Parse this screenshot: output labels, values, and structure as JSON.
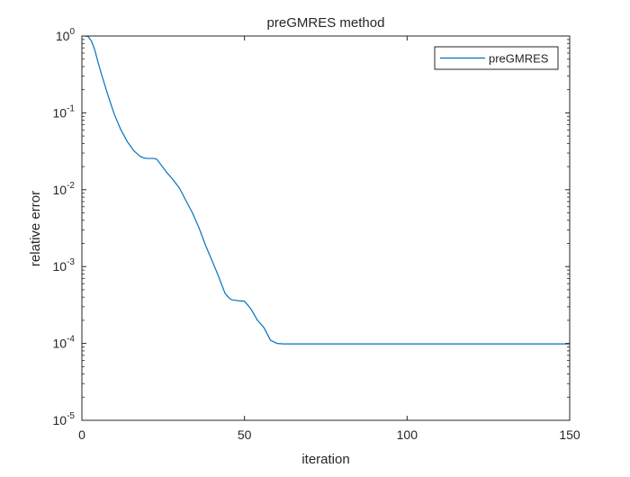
{
  "chart_data": {
    "type": "line",
    "title": "preGMRES method",
    "xlabel": "iteration",
    "ylabel": "relative error",
    "xlim": [
      0,
      150
    ],
    "ylim": [
      1e-05,
      1
    ],
    "yscale": "log",
    "x_ticks": [
      0,
      50,
      100,
      150
    ],
    "x_tick_labels": [
      "0",
      "50",
      "100",
      "150"
    ],
    "y_ticks": [
      {
        "value": 1,
        "base": "10",
        "exp": "0"
      },
      {
        "value": 0.1,
        "base": "10",
        "exp": "-1"
      },
      {
        "value": 0.01,
        "base": "10",
        "exp": "-2"
      },
      {
        "value": 0.001,
        "base": "10",
        "exp": "-3"
      },
      {
        "value": 0.0001,
        "base": "10",
        "exp": "-4"
      },
      {
        "value": 1e-05,
        "base": "10",
        "exp": "-5"
      }
    ],
    "grid": false,
    "legend": {
      "position": "top-right",
      "entries": [
        "preGMRES"
      ]
    },
    "series": [
      {
        "name": "preGMRES",
        "color": "#0072BD",
        "x": [
          1,
          2,
          3,
          4,
          5,
          6,
          8,
          10,
          12,
          14,
          16,
          18,
          19,
          20,
          22,
          23,
          24,
          26,
          28,
          30,
          32,
          34,
          36,
          38,
          40,
          42,
          44,
          45,
          46,
          48,
          50,
          52,
          54,
          56,
          58,
          60,
          62,
          70,
          80,
          90,
          100,
          110,
          120,
          130,
          140,
          150
        ],
        "y": [
          1.0,
          0.98,
          0.85,
          0.65,
          0.45,
          0.32,
          0.17,
          0.095,
          0.06,
          0.042,
          0.032,
          0.027,
          0.026,
          0.0255,
          0.0255,
          0.025,
          0.022,
          0.017,
          0.0135,
          0.0105,
          0.0072,
          0.005,
          0.0032,
          0.0019,
          0.0012,
          0.00075,
          0.00045,
          0.0004,
          0.00037,
          0.00036,
          0.000355,
          0.00028,
          0.0002,
          0.00016,
          0.00011,
          0.0001,
          9.85e-05,
          9.85e-05,
          9.85e-05,
          9.85e-05,
          9.85e-05,
          9.85e-05,
          9.85e-05,
          9.85e-05,
          9.85e-05,
          9.85e-05
        ]
      }
    ]
  }
}
